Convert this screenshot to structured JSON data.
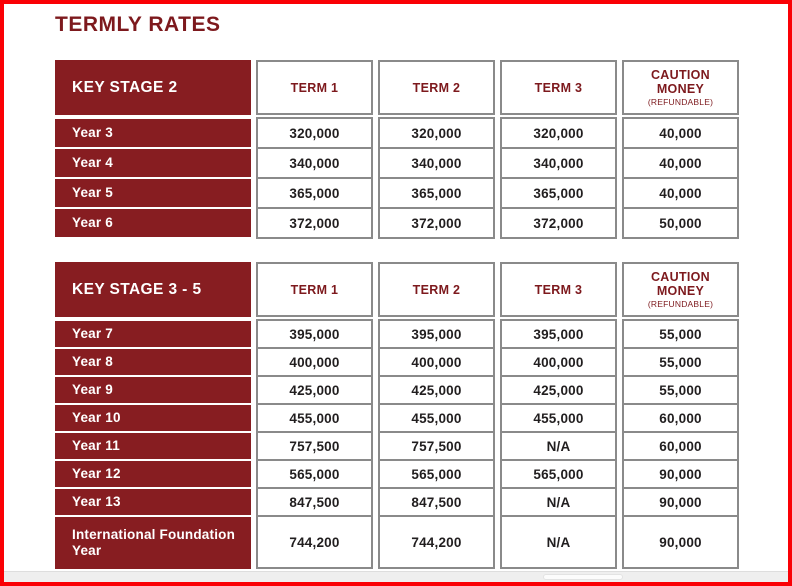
{
  "title": "TERMLY RATES",
  "colors": {
    "frame-red": "#fa0005",
    "maroon": "#871d21",
    "heading-maroon": "#7d191d",
    "border-gray": "#8a8a8a",
    "value-black": "#211e1f",
    "strip-gray": "#efefef"
  },
  "tables": [
    {
      "stage_label": "KEY STAGE 2",
      "term_headers": [
        "TERM 1",
        "TERM 2",
        "TERM 3"
      ],
      "caution_header": "CAUTION MONEY",
      "caution_note": "(REFUNDABLE)",
      "rows": [
        {
          "label": "Year 3",
          "term1": "320,000",
          "term2": "320,000",
          "term3": "320,000",
          "caution": "40,000"
        },
        {
          "label": "Year 4",
          "term1": "340,000",
          "term2": "340,000",
          "term3": "340,000",
          "caution": "40,000"
        },
        {
          "label": "Year 5",
          "term1": "365,000",
          "term2": "365,000",
          "term3": "365,000",
          "caution": "40,000"
        },
        {
          "label": "Year 6",
          "term1": "372,000",
          "term2": "372,000",
          "term3": "372,000",
          "caution": "50,000"
        }
      ]
    },
    {
      "stage_label": "KEY STAGE 3 - 5",
      "term_headers": [
        "TERM 1",
        "TERM 2",
        "TERM 3"
      ],
      "caution_header": "CAUTION MONEY",
      "caution_note": "(REFUNDABLE)",
      "rows": [
        {
          "label": "Year 7",
          "term1": "395,000",
          "term2": "395,000",
          "term3": "395,000",
          "caution": "55,000"
        },
        {
          "label": "Year 8",
          "term1": "400,000",
          "term2": "400,000",
          "term3": "400,000",
          "caution": "55,000"
        },
        {
          "label": "Year 9",
          "term1": "425,000",
          "term2": "425,000",
          "term3": "425,000",
          "caution": "55,000"
        },
        {
          "label": "Year 10",
          "term1": "455,000",
          "term2": "455,000",
          "term3": "455,000",
          "caution": "60,000"
        },
        {
          "label": "Year 11",
          "term1": "757,500",
          "term2": "757,500",
          "term3": "N/A",
          "caution": "60,000"
        },
        {
          "label": "Year 12",
          "term1": "565,000",
          "term2": "565,000",
          "term3": "565,000",
          "caution": "90,000"
        },
        {
          "label": "Year 13",
          "term1": "847,500",
          "term2": "847,500",
          "term3": "N/A",
          "caution": "90,000"
        },
        {
          "label": "International Foundation Year",
          "term1": "744,200",
          "term2": "744,200",
          "term3": "N/A",
          "caution": "90,000"
        }
      ]
    }
  ]
}
